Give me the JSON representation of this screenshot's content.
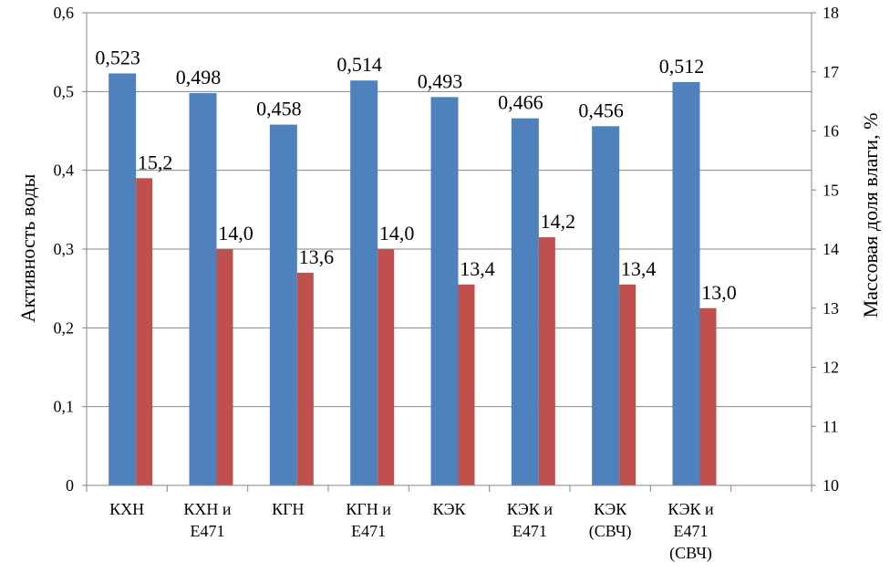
{
  "chart_data": {
    "type": "bar",
    "categories": [
      [
        "КХН"
      ],
      [
        "КХН и",
        "Е471"
      ],
      [
        "КГН"
      ],
      [
        "КГН и",
        "Е471"
      ],
      [
        "КЭК"
      ],
      [
        "КЭК и",
        "Е471"
      ],
      [
        "КЭК",
        "(СВЧ)"
      ],
      [
        "КЭК и",
        "Е471",
        "(СВЧ)"
      ],
      [
        ""
      ]
    ],
    "series": [
      {
        "axis": "left",
        "color": "#4F81BD",
        "values": [
          0.523,
          0.498,
          0.458,
          0.514,
          0.493,
          0.466,
          0.456,
          0.512,
          null
        ],
        "labels": [
          "0,523",
          "0,498",
          "0,458",
          "0,514",
          "0,493",
          "0,466",
          "0,456",
          "0,512",
          ""
        ]
      },
      {
        "axis": "right",
        "color": "#C0504D",
        "values": [
          15.2,
          14.0,
          13.6,
          14.0,
          13.4,
          14.2,
          13.4,
          13.0,
          null
        ],
        "labels": [
          "15,2",
          "14,0",
          "13,6",
          "14,0",
          "13,4",
          "14,2",
          "13,4",
          "13,0",
          ""
        ]
      }
    ],
    "ylabel_left": "Активность воды",
    "ylabel_right": "Массовая доля влаги, %",
    "ylim_left": [
      0,
      0.6
    ],
    "ylim_right": [
      10,
      18
    ],
    "yticks_left": [
      "0",
      "0,1",
      "0,2",
      "0,3",
      "0,4",
      "0,5",
      "0,6"
    ],
    "yticks_right": [
      "10",
      "11",
      "12",
      "13",
      "14",
      "15",
      "16",
      "17",
      "18"
    ],
    "grid": true,
    "legend": "none"
  }
}
